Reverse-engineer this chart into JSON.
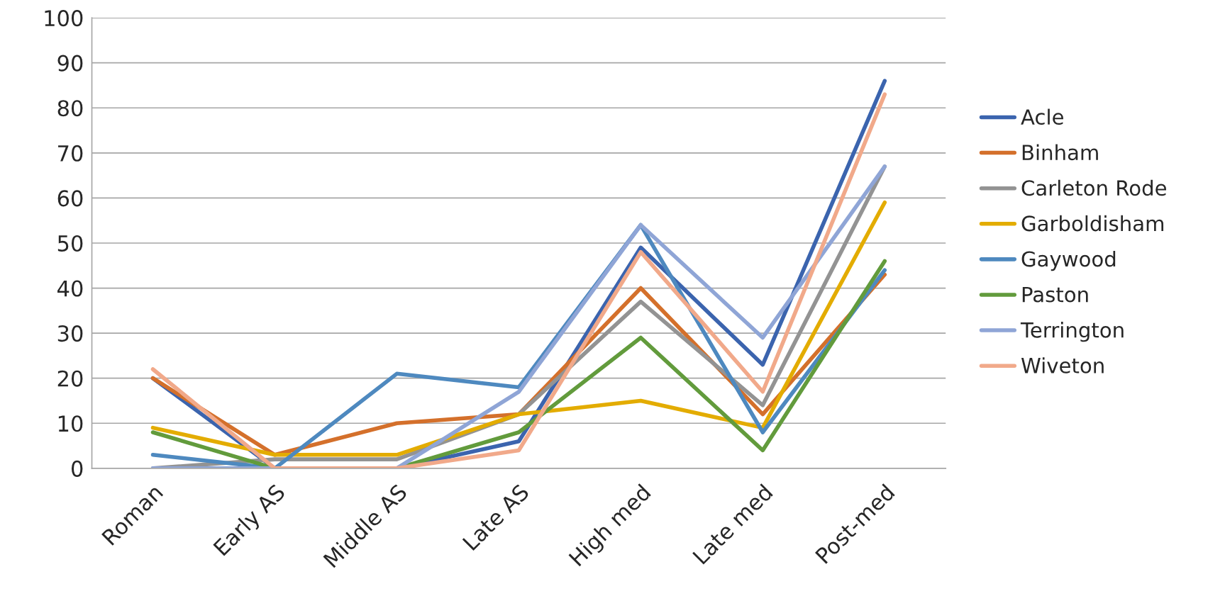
{
  "chart_data": {
    "type": "line",
    "categories": [
      "Roman",
      "Early AS",
      "Middle AS",
      "Late AS",
      "High med",
      "Late med",
      "Post-med"
    ],
    "series": [
      {
        "name": "Acle",
        "color": "#3b64ae",
        "values": [
          20,
          0,
          0,
          6,
          49,
          23,
          86
        ]
      },
      {
        "name": "Binham",
        "color": "#d4702b",
        "values": [
          20,
          3,
          10,
          12,
          40,
          12,
          43
        ]
      },
      {
        "name": "Carleton Rode",
        "color": "#939393",
        "values": [
          0,
          2,
          2,
          12,
          37,
          14,
          67
        ]
      },
      {
        "name": "Garboldisham",
        "color": "#e3ac00",
        "values": [
          9,
          3,
          3,
          12,
          15,
          9,
          59
        ]
      },
      {
        "name": "Gaywood",
        "color": "#4e89bf",
        "values": [
          3,
          0,
          21,
          18,
          54,
          8,
          44
        ]
      },
      {
        "name": "Paston",
        "color": "#629b3c",
        "values": [
          8,
          0,
          0,
          8,
          29,
          4,
          46
        ]
      },
      {
        "name": "Terrington",
        "color": "#8fa5d6",
        "values": [
          0,
          0,
          0,
          17,
          54,
          29,
          67
        ]
      },
      {
        "name": "Wiveton",
        "color": "#f1a98a",
        "values": [
          22,
          0,
          0,
          4,
          48,
          17,
          83
        ]
      }
    ],
    "ylim": [
      0,
      100
    ],
    "yticks": [
      0,
      10,
      20,
      30,
      40,
      50,
      60,
      70,
      80,
      90,
      100
    ],
    "grid": "y",
    "legend": "right",
    "marker": "none",
    "line_style": "solid"
  }
}
